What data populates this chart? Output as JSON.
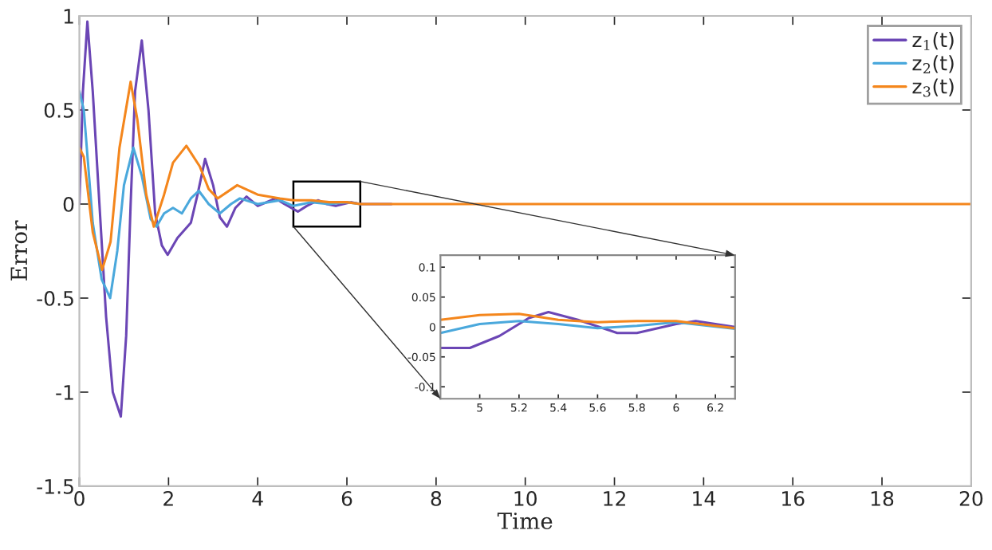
{
  "chart_data": [
    {
      "type": "line",
      "xlabel": "Time",
      "ylabel": "Error",
      "xlim": [
        0,
        20
      ],
      "ylim": [
        -1.5,
        1
      ],
      "xticks": [
        0,
        2,
        4,
        6,
        8,
        10,
        12,
        14,
        16,
        18,
        20
      ],
      "yticks": [
        -1.5,
        -1,
        -0.5,
        0,
        0.5,
        1
      ],
      "legend": "top right",
      "grid": false,
      "series": [
        {
          "name": "z$_{1}$(t)",
          "color": "#6b46b5",
          "x": [
            0,
            0.08,
            0.18,
            0.3,
            0.45,
            0.6,
            0.75,
            0.93,
            1.05,
            1.15,
            1.25,
            1.4,
            1.55,
            1.7,
            1.85,
            1.98,
            2.2,
            2.5,
            2.65,
            2.82,
            3.0,
            3.15,
            3.31,
            3.5,
            3.75,
            4.0,
            4.4,
            4.6,
            4.9,
            5.1,
            5.35,
            5.55,
            5.75,
            6.1,
            6.3,
            7
          ],
          "values": [
            0,
            0.6,
            0.97,
            0.6,
            0,
            -0.6,
            -1.0,
            -1.13,
            -0.7,
            0,
            0.6,
            0.87,
            0.5,
            -0.05,
            -0.22,
            -0.27,
            -0.18,
            -0.1,
            0.05,
            0.24,
            0.1,
            -0.07,
            -0.12,
            -0.02,
            0.04,
            -0.01,
            0.03,
            0,
            -0.04,
            -0.01,
            0.02,
            0,
            -0.01,
            0.01,
            0,
            0
          ]
        },
        {
          "name": "z$_{2}$(t)",
          "color": "#4aa8dc",
          "x": [
            0,
            0.1,
            0.3,
            0.5,
            0.69,
            0.85,
            1.0,
            1.21,
            1.4,
            1.6,
            1.73,
            1.9,
            2.1,
            2.3,
            2.5,
            2.68,
            2.9,
            3.15,
            3.4,
            3.6,
            4.0,
            4.5,
            4.8,
            5.2,
            5.6,
            6.0,
            6.3
          ],
          "values": [
            0.6,
            0.5,
            -0.1,
            -0.4,
            -0.5,
            -0.25,
            0.1,
            0.3,
            0.15,
            -0.08,
            -0.12,
            -0.05,
            -0.02,
            -0.05,
            0.03,
            0.07,
            0,
            -0.05,
            0,
            0.03,
            0,
            0.02,
            -0.01,
            0.01,
            0,
            0.01,
            0
          ]
        },
        {
          "name": "z$_{3}$(t)",
          "color": "#f4861c",
          "x": [
            0,
            0.1,
            0.3,
            0.51,
            0.7,
            0.9,
            1.15,
            1.3,
            1.5,
            1.67,
            1.9,
            2.1,
            2.4,
            2.7,
            2.9,
            3.1,
            3.54,
            4.0,
            4.5,
            4.8,
            5.2,
            5.6,
            6.0,
            6.3,
            8,
            20
          ],
          "values": [
            0.3,
            0.25,
            -0.15,
            -0.35,
            -0.2,
            0.3,
            0.65,
            0.45,
            0.05,
            -0.12,
            0.05,
            0.22,
            0.31,
            0.2,
            0.08,
            0.03,
            0.1,
            0.05,
            0.03,
            0.02,
            0.02,
            0.01,
            0.01,
            0,
            0,
            0
          ]
        }
      ]
    },
    {
      "type": "line",
      "xlim": [
        4.8,
        6.3
      ],
      "ylim": [
        -0.12,
        0.12
      ],
      "xticks": [
        5,
        5.2,
        5.4,
        5.6,
        5.8,
        6,
        6.2
      ],
      "yticks": [
        -0.1,
        -0.05,
        0,
        0.05,
        0.1
      ],
      "grid": false,
      "series": [
        {
          "color": "#6b46b5",
          "x": [
            4.8,
            4.95,
            5.1,
            5.25,
            5.35,
            5.5,
            5.7,
            5.8,
            6.0,
            6.1,
            6.3
          ],
          "values": [
            -0.035,
            -0.035,
            -0.015,
            0.015,
            0.025,
            0.012,
            -0.01,
            -0.01,
            0.005,
            0.01,
            0
          ]
        },
        {
          "color": "#4aa8dc",
          "x": [
            4.8,
            5.0,
            5.2,
            5.4,
            5.6,
            5.8,
            6.0,
            6.3
          ],
          "values": [
            -0.01,
            0.005,
            0.01,
            0.005,
            -0.002,
            0.002,
            0.008,
            -0.003
          ]
        },
        {
          "color": "#f4861c",
          "x": [
            4.8,
            5.0,
            5.2,
            5.4,
            5.6,
            5.8,
            6.0,
            6.3
          ],
          "values": [
            0.012,
            0.02,
            0.022,
            0.012,
            0.008,
            0.01,
            0.01,
            -0.002
          ]
        }
      ]
    }
  ]
}
